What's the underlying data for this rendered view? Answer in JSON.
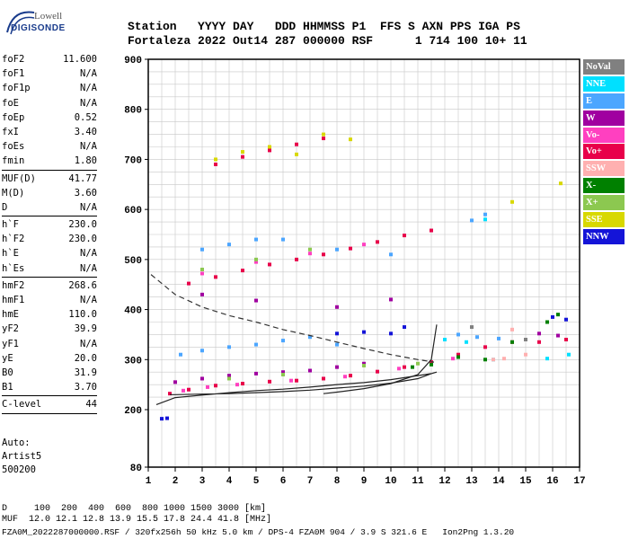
{
  "logo": {
    "line1": "Lowell",
    "line2": "DIGISONDE"
  },
  "header": {
    "labels": "Station   YYYY DAY   DDD HHMMSS P1  FFS S AXN PPS IGA PS",
    "values": "Fortaleza 2022 Out14 287 000000 RSF      1 714 100 10+ 11"
  },
  "params": {
    "group1": [
      {
        "name": "foF2",
        "value": "11.600"
      },
      {
        "name": "foF1",
        "value": "N/A"
      },
      {
        "name": "foF1p",
        "value": "N/A"
      },
      {
        "name": "foE",
        "value": "N/A"
      },
      {
        "name": "foEp",
        "value": "0.52"
      },
      {
        "name": "fxI",
        "value": "3.40"
      },
      {
        "name": "foEs",
        "value": "N/A"
      },
      {
        "name": "fmin",
        "value": "1.80"
      }
    ],
    "group2": [
      {
        "name": "MUF(D)",
        "value": "41.77"
      },
      {
        "name": "M(D)",
        "value": "3.60"
      },
      {
        "name": "D",
        "value": "N/A"
      }
    ],
    "group3": [
      {
        "name": "h`F",
        "value": "230.0"
      },
      {
        "name": "h`F2",
        "value": "230.0"
      },
      {
        "name": "h`E",
        "value": "N/A"
      },
      {
        "name": "h`Es",
        "value": "N/A"
      }
    ],
    "group4": [
      {
        "name": "hmF2",
        "value": "268.6"
      },
      {
        "name": "hmF1",
        "value": "N/A"
      },
      {
        "name": "hmE",
        "value": "110.0"
      },
      {
        "name": "yF2",
        "value": "39.9"
      },
      {
        "name": "yF1",
        "value": "N/A"
      },
      {
        "name": "yE",
        "value": "20.0"
      },
      {
        "name": "B0",
        "value": "31.9"
      },
      {
        "name": "B1",
        "value": "3.70"
      }
    ],
    "group5": [
      {
        "name": "C-level",
        "value": "44"
      }
    ]
  },
  "auto": {
    "line1": "Auto:",
    "line2": "Artist5",
    "line3": "500200"
  },
  "legend": [
    {
      "label": "NoVal",
      "bg": "#808080",
      "fg": "#ffffff"
    },
    {
      "label": "NNE",
      "bg": "#00e0ff",
      "fg": "#ffffff"
    },
    {
      "label": "E",
      "bg": "#4ca6ff",
      "fg": "#ffffff"
    },
    {
      "label": "W",
      "bg": "#a000a0",
      "fg": "#ffffff"
    },
    {
      "label": "Vo-",
      "bg": "#ff40c0",
      "fg": "#ffffff"
    },
    {
      "label": "Vo+",
      "bg": "#e8004a",
      "fg": "#ffffff"
    },
    {
      "label": "SSW",
      "bg": "#ffb0b0",
      "fg": "#ffffff"
    },
    {
      "label": "X-",
      "bg": "#008000",
      "fg": "#ffffff"
    },
    {
      "label": "X+",
      "bg": "#8cc850",
      "fg": "#ffffff"
    },
    {
      "label": "SSE",
      "bg": "#d8d800",
      "fg": "#ffffff"
    },
    {
      "label": "NNW",
      "bg": "#1414d8",
      "fg": "#ffffff"
    }
  ],
  "footer": {
    "line1": "D     100  200  400  600  800 1000 1500 3000 [km]",
    "line2": "MUF  12.0 12.1 12.8 13.9 15.5 17.8 24.4 41.8 [MHz]",
    "line3": "FZA0M_2022287000000.RSF / 320fx256h 50 kHz 5.0 km / DPS-4 FZA0M 904 / 3.9 S 321.6 E   Ion2Png 1.3.20"
  },
  "chart_data": {
    "type": "scatter",
    "xlim": [
      1,
      17
    ],
    "ylim": [
      80,
      900
    ],
    "xticks": [
      1,
      2,
      3,
      4,
      5,
      6,
      7,
      8,
      9,
      10,
      11,
      12,
      13,
      14,
      15,
      16,
      17
    ],
    "yticks": [
      80,
      200,
      300,
      400,
      500,
      600,
      700,
      800,
      900
    ],
    "grid": true,
    "series": [
      {
        "name": "Vo+",
        "color": "#e8004a",
        "points": [
          [
            1.8,
            232
          ],
          [
            2.5,
            240
          ],
          [
            3.5,
            248
          ],
          [
            4.5,
            252
          ],
          [
            5.5,
            256
          ],
          [
            6.5,
            258
          ],
          [
            7.5,
            262
          ],
          [
            8.5,
            268
          ],
          [
            9.5,
            276
          ],
          [
            10.5,
            285
          ],
          [
            11.5,
            295
          ],
          [
            12.5,
            310
          ],
          [
            13.5,
            325
          ],
          [
            14.5,
            335
          ],
          [
            15.5,
            335
          ],
          [
            16.5,
            340
          ],
          [
            2.5,
            452
          ],
          [
            3.5,
            465
          ],
          [
            4.5,
            478
          ],
          [
            5.5,
            490
          ],
          [
            6.5,
            500
          ],
          [
            7.5,
            510
          ],
          [
            8.5,
            522
          ],
          [
            9.5,
            535
          ],
          [
            10.5,
            548
          ],
          [
            11.5,
            558
          ],
          [
            3.5,
            690
          ],
          [
            4.5,
            705
          ],
          [
            5.5,
            718
          ],
          [
            6.5,
            730
          ],
          [
            7.5,
            742
          ]
        ]
      },
      {
        "name": "W",
        "color": "#a000a0",
        "points": [
          [
            2,
            255
          ],
          [
            3,
            262
          ],
          [
            4,
            268
          ],
          [
            5,
            272
          ],
          [
            6,
            275
          ],
          [
            7,
            278
          ],
          [
            8,
            285
          ],
          [
            9,
            292
          ],
          [
            3,
            430
          ],
          [
            5,
            418
          ],
          [
            8,
            405
          ],
          [
            10,
            420
          ],
          [
            16.2,
            348
          ],
          [
            15.5,
            352
          ]
        ]
      },
      {
        "name": "Vo-",
        "color": "#ff40c0",
        "points": [
          [
            2.3,
            238
          ],
          [
            3.2,
            245
          ],
          [
            4.3,
            250
          ],
          [
            6.3,
            258
          ],
          [
            8.3,
            266
          ],
          [
            10.3,
            282
          ],
          [
            12.3,
            302
          ],
          [
            3,
            472
          ],
          [
            5,
            495
          ],
          [
            7,
            512
          ],
          [
            9,
            530
          ]
        ]
      },
      {
        "name": "E",
        "color": "#4ca6ff",
        "points": [
          [
            2.2,
            310
          ],
          [
            3,
            318
          ],
          [
            4,
            325
          ],
          [
            5,
            330
          ],
          [
            6,
            338
          ],
          [
            7,
            345
          ],
          [
            8,
            330
          ],
          [
            12.5,
            350
          ],
          [
            13.2,
            345
          ],
          [
            14,
            342
          ],
          [
            3,
            520
          ],
          [
            4,
            530
          ],
          [
            5,
            540
          ],
          [
            6,
            540
          ],
          [
            8,
            520
          ],
          [
            10,
            510
          ],
          [
            13,
            578
          ],
          [
            13.5,
            590
          ]
        ]
      },
      {
        "name": "NNE",
        "color": "#00e0ff",
        "points": [
          [
            12,
            340
          ],
          [
            12.8,
            335
          ],
          [
            13.8,
            300
          ],
          [
            15.8,
            302
          ],
          [
            16.6,
            310
          ],
          [
            13.5,
            580
          ]
        ]
      },
      {
        "name": "NNW",
        "color": "#1414d8",
        "points": [
          [
            8,
            352
          ],
          [
            9,
            355
          ],
          [
            10,
            352
          ],
          [
            10.5,
            365
          ],
          [
            16,
            385
          ],
          [
            16.5,
            380
          ],
          [
            1.5,
            181
          ],
          [
            1.7,
            182
          ]
        ]
      },
      {
        "name": "X-",
        "color": "#008000",
        "points": [
          [
            10.8,
            285
          ],
          [
            11.5,
            290
          ],
          [
            12.5,
            305
          ],
          [
            13.5,
            300
          ],
          [
            14.5,
            335
          ],
          [
            16.2,
            390
          ],
          [
            15.8,
            375
          ]
        ]
      },
      {
        "name": "X+",
        "color": "#8cc850",
        "points": [
          [
            4,
            262
          ],
          [
            6,
            270
          ],
          [
            9,
            288
          ],
          [
            11,
            292
          ],
          [
            3,
            480
          ],
          [
            5,
            500
          ],
          [
            7,
            520
          ]
        ]
      },
      {
        "name": "SSE",
        "color": "#d8d800",
        "points": [
          [
            3.5,
            700
          ],
          [
            4.5,
            715
          ],
          [
            5.5,
            725
          ],
          [
            6.5,
            710
          ],
          [
            7.5,
            750
          ],
          [
            8.5,
            740
          ],
          [
            14.5,
            615
          ],
          [
            16.3,
            652
          ]
        ]
      },
      {
        "name": "SSW",
        "color": "#ffb0b0",
        "points": [
          [
            13.8,
            300
          ],
          [
            14.2,
            302
          ],
          [
            15,
            310
          ],
          [
            14.5,
            360
          ]
        ]
      },
      {
        "name": "NoVal",
        "color": "#808080",
        "points": [
          [
            13,
            365
          ],
          [
            15,
            340
          ]
        ]
      }
    ],
    "lines": [
      {
        "style": "solid",
        "points": [
          [
            1.3,
            210
          ],
          [
            2,
            224
          ],
          [
            3,
            229
          ],
          [
            4,
            234
          ],
          [
            5,
            238
          ],
          [
            6,
            241
          ],
          [
            7,
            245
          ],
          [
            8,
            250
          ],
          [
            9,
            254
          ],
          [
            10,
            260
          ],
          [
            11,
            268
          ],
          [
            11.5,
            272
          ],
          [
            11.7,
            275
          ],
          [
            11.5,
            272
          ],
          [
            11,
            262
          ],
          [
            10,
            253
          ],
          [
            9,
            247
          ],
          [
            8,
            243
          ],
          [
            7,
            239
          ],
          [
            6,
            236
          ],
          [
            5,
            234
          ],
          [
            4,
            232
          ],
          [
            3,
            231
          ],
          [
            2,
            230
          ],
          [
            1.8,
            230
          ]
        ]
      },
      {
        "style": "solid",
        "points": [
          [
            7.5,
            232
          ],
          [
            8,
            235
          ],
          [
            9,
            242
          ],
          [
            10,
            252
          ],
          [
            11,
            270
          ],
          [
            11.5,
            300
          ],
          [
            11.7,
            370
          ]
        ]
      },
      {
        "style": "dashed",
        "points": [
          [
            1.1,
            470
          ],
          [
            2,
            430
          ],
          [
            3,
            405
          ],
          [
            4,
            388
          ],
          [
            5,
            375
          ],
          [
            6,
            360
          ],
          [
            7,
            348
          ],
          [
            8,
            335
          ],
          [
            9,
            322
          ],
          [
            10,
            310
          ],
          [
            11,
            300
          ],
          [
            11.6,
            295
          ]
        ]
      }
    ]
  }
}
